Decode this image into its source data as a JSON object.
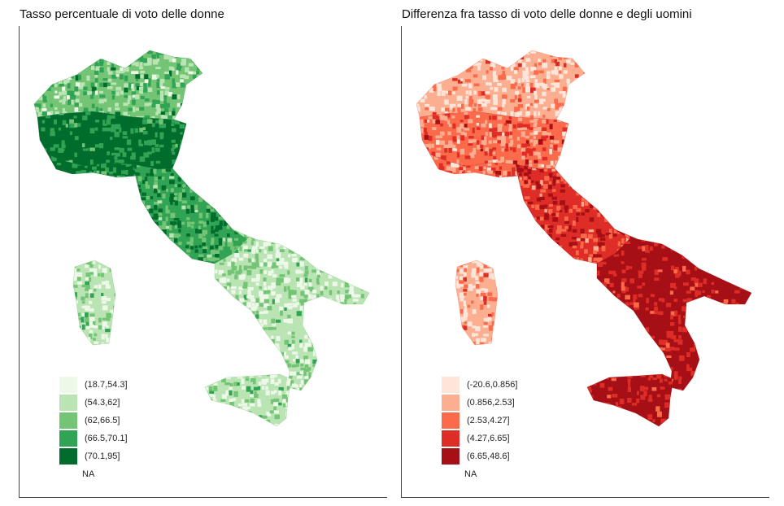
{
  "maps": [
    {
      "id": "women",
      "title": "Tasso percentuale di voto delle donne",
      "palette": [
        "#edf8e9",
        "#bae4b3",
        "#74c476",
        "#31a354",
        "#006d2c"
      ],
      "legend": [
        {
          "label": "(18.7,54.3]",
          "color": "#edf8e9"
        },
        {
          "label": "(54.3,62]",
          "color": "#bae4b3"
        },
        {
          "label": "(62,66.5]",
          "color": "#74c476"
        },
        {
          "label": "(66.5,70.1]",
          "color": "#31a354"
        },
        {
          "label": "(70.1,95]",
          "color": "#006d2c"
        }
      ],
      "na_label": "NA",
      "regions": {
        "north": 4,
        "alps": 2,
        "center": 3,
        "south": 1,
        "sicily": 1,
        "sardinia": 1
      }
    },
    {
      "id": "difference",
      "title": "Differenza fra tasso di voto delle donne e degli uomini",
      "palette": [
        "#fee5d9",
        "#fcae91",
        "#fb6a4a",
        "#de2d26",
        "#a50f15"
      ],
      "legend": [
        {
          "label": "(-20.6,0.856]",
          "color": "#fee5d9"
        },
        {
          "label": "(0.856,2.53]",
          "color": "#fcae91"
        },
        {
          "label": "(2.53,4.27]",
          "color": "#fb6a4a"
        },
        {
          "label": "(4.27,6.65]",
          "color": "#de2d26"
        },
        {
          "label": "(6.65,48.6]",
          "color": "#a50f15"
        }
      ],
      "na_label": "NA",
      "regions": {
        "north": 2,
        "alps": 1,
        "center": 3,
        "south": 4,
        "sicily": 4,
        "sardinia": 1
      }
    }
  ]
}
